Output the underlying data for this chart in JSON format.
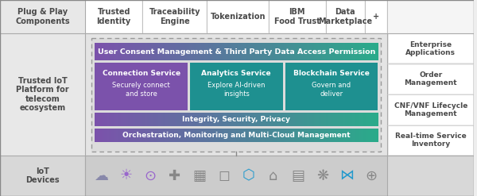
{
  "fig_width": 6.0,
  "fig_height": 2.47,
  "dpi": 100,
  "bg_color": "#f0f0eeee",
  "top_labels": [
    "Trusted\nIdentity",
    "Traceability\nEngine",
    "Tokenization",
    "IBM\nFood Trust",
    "Data\nMarketplace",
    "+"
  ],
  "left_labels": [
    "Plug & Play\nComponents",
    "Trusted IoT\nPlatform for\ntelecom\necosystem",
    "IoT\nDevices"
  ],
  "right_labels": [
    "Enterprise\nApplications",
    "Order\nManagement",
    "CNF/VNF Lifecycle\nManagement",
    "Real-time Service\nInventory"
  ],
  "user_consent_text": "User Consent Management & Third Party Data Access Permission",
  "service_boxes": [
    {
      "title": "Connection Service",
      "subtitle": "Securely connect\nand store"
    },
    {
      "title": "Analytics Service",
      "subtitle": "Explore AI-driven\ninsights"
    },
    {
      "title": "Blockchain Service",
      "subtitle": "Govern and\ndeliver"
    }
  ],
  "integrity_text": "Integrity, Security, Privacy",
  "orchestration_text": "Orchestration, Monitoring and Multi-Cloud Management",
  "purple": "#7b52ab",
  "teal": "#2aaa8a",
  "mid_teal": "#1e9090",
  "white": "#ffffff",
  "light_gray": "#ebebeb",
  "mid_gray": "#d8d8d8",
  "border_gray": "#aaaaaa",
  "text_dark": "#3a3a3a",
  "text_bold_color": "#4a4a4a"
}
